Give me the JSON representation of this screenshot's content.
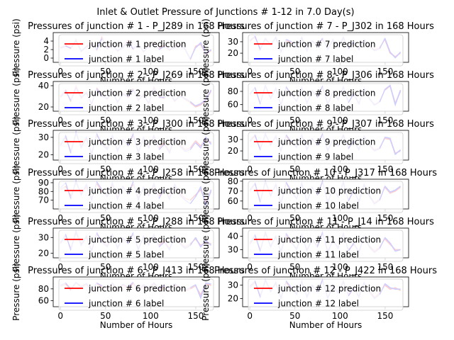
{
  "figure": {
    "suptitle": "Inlet & Outlet Pressure of Junctions # 1-12 in 7.0 Day(s)"
  },
  "colors": {
    "prediction": "#ff0000",
    "label": "#0000ff",
    "prediction_faint": "#ffb0b0",
    "label_faint": "#b0b0ff"
  },
  "chart_data": [
    {
      "type": "line",
      "title": "Pressures of junction # 1 - P_J289 in 168 Hours",
      "xlabel": "Number of Hours",
      "ylabel": "Pressure (psi)",
      "xlim": [
        -8,
        176
      ],
      "ylim": [
        -1,
        6
      ],
      "yticks": [
        0,
        2,
        4
      ],
      "xticks": [
        0,
        50,
        100,
        150
      ],
      "legend": "top-center",
      "series": [
        {
          "name": "junction # 1 prediction",
          "values": [
            2.5,
            3.0,
            2.2,
            4.4,
            1.5,
            2.8,
            3.6,
            1.8,
            5.0,
            2.4,
            3.2,
            1.6,
            2.6,
            4.2,
            2.0,
            3.4,
            1.4,
            2.8,
            3.8,
            2.2,
            3.0,
            1.8,
            2.6,
            3.4,
            2.0,
            -0.4,
            2.8,
            3.2,
            0.9,
            1.8
          ]
        },
        {
          "name": "junction # 1 label",
          "values": [
            2.3,
            2.8,
            2.4,
            4.0,
            1.7,
            2.6,
            3.2,
            2.0,
            4.6,
            2.2,
            3.0,
            1.8,
            2.4,
            3.8,
            2.2,
            3.2,
            1.6,
            2.6,
            3.4,
            2.0,
            2.8,
            2.0,
            2.4,
            3.0,
            2.2,
            -0.2,
            2.4,
            3.6,
            1.0,
            2.0
          ]
        }
      ]
    },
    {
      "type": "line",
      "title": "Pressures of junction # 2 - P_J269 in 168 Hours",
      "xlabel": "Number of Hours",
      "ylabel": "Pressure (psi)",
      "xlim": [
        -8,
        176
      ],
      "ylim": [
        16,
        44
      ],
      "yticks": [
        20,
        40
      ],
      "xticks": [
        0,
        50,
        100,
        150
      ],
      "legend": "top-center",
      "series": [
        {
          "name": "junction # 2 prediction",
          "values": [
            30,
            36,
            25,
            40,
            28,
            34,
            22,
            38,
            31,
            27,
            35,
            24,
            33,
            29,
            37,
            26,
            32,
            23,
            39,
            30,
            28,
            34,
            25,
            31,
            27,
            24,
            20,
            22,
            26,
            35
          ]
        },
        {
          "name": "junction # 2 label",
          "values": [
            29,
            35,
            26,
            38,
            29,
            33,
            23,
            37,
            30,
            28,
            34,
            25,
            32,
            30,
            36,
            27,
            31,
            24,
            37,
            29,
            29,
            33,
            26,
            30,
            28,
            25,
            21,
            23,
            27,
            36
          ]
        }
      ]
    },
    {
      "type": "line",
      "title": "Pressures of junction # 3 - P_J300 in 168 Hours",
      "xlabel": "Number of Hours",
      "ylabel": "Pressure (psi)",
      "xlim": [
        -8,
        176
      ],
      "ylim": [
        17,
        34
      ],
      "yticks": [
        20,
        30
      ],
      "xticks": [
        0,
        50,
        100,
        150
      ],
      "legend": "top-center",
      "series": [
        {
          "name": "junction # 3 prediction",
          "values": [
            26,
            30,
            22,
            32,
            25,
            29,
            21,
            31,
            27,
            24,
            30,
            23,
            28,
            26,
            31,
            22,
            29,
            25,
            30,
            24,
            27,
            22,
            29,
            26,
            23,
            24,
            28,
            25,
            29,
            27
          ]
        },
        {
          "name": "junction # 3 label",
          "values": [
            25,
            31,
            21,
            33,
            24,
            30,
            20,
            32,
            26,
            23,
            31,
            22,
            29,
            25,
            32,
            21,
            30,
            24,
            31,
            23,
            26,
            21,
            30,
            25,
            22,
            23,
            27,
            24,
            30,
            26
          ]
        }
      ]
    },
    {
      "type": "line",
      "title": "Pressures of junction # 4 - P_J258 in 168 Hours",
      "xlabel": "Number of Hours",
      "ylabel": "Pressure (psi)",
      "xlim": [
        -8,
        176
      ],
      "ylim": [
        60,
        94
      ],
      "yticks": [
        70,
        80,
        90
      ],
      "xticks": [
        0,
        50,
        100,
        150
      ],
      "legend": "top-center",
      "series": [
        {
          "name": "junction # 4 prediction",
          "values": [
            82,
            86,
            75,
            90,
            78,
            85,
            72,
            89,
            80,
            76,
            87,
            74,
            84,
            79,
            88,
            73,
            83,
            77,
            86,
            75,
            81,
            74,
            85,
            78,
            72,
            70,
            76,
            82,
            68,
            80
          ]
        },
        {
          "name": "junction # 4 label",
          "values": [
            84,
            90,
            72,
            92,
            76,
            88,
            70,
            91,
            82,
            74,
            90,
            71,
            86,
            77,
            91,
            70,
            85,
            75,
            89,
            72,
            83,
            71,
            88,
            76,
            70,
            66,
            74,
            85,
            64,
            82
          ]
        }
      ]
    },
    {
      "type": "line",
      "title": "Pressures of junction # 5 - P_J288 in 168 Hours",
      "xlabel": "Number of Hours",
      "ylabel": "Pressure (psi)",
      "xlim": [
        -8,
        176
      ],
      "ylim": [
        17,
        36
      ],
      "yticks": [
        20,
        30
      ],
      "xticks": [
        0,
        50,
        100,
        150
      ],
      "legend": "top-center",
      "series": [
        {
          "name": "junction # 5 prediction",
          "values": [
            27,
            31,
            23,
            33,
            26,
            30,
            22,
            32,
            28,
            25,
            31,
            24,
            29,
            27,
            32,
            23,
            30,
            26,
            31,
            25,
            28,
            23,
            30,
            27,
            24,
            26,
            29,
            25,
            27,
            26
          ]
        },
        {
          "name": "junction # 5 label",
          "values": [
            26,
            32,
            22,
            34,
            25,
            31,
            21,
            33,
            27,
            24,
            32,
            23,
            30,
            26,
            33,
            22,
            31,
            25,
            32,
            24,
            27,
            22,
            31,
            26,
            23,
            25,
            30,
            24,
            28,
            25
          ]
        }
      ]
    },
    {
      "type": "line",
      "title": "Pressures of junction # 6 - P_J413 in 168 Hours",
      "xlabel": "Number of Hours",
      "ylabel": "Pressure (psi)",
      "xlim": [
        -8,
        176
      ],
      "ylim": [
        50,
        100
      ],
      "yticks": [
        60,
        80
      ],
      "xticks": [
        0,
        50,
        100,
        150
      ],
      "legend": "top-center",
      "series": [
        {
          "name": "junction # 6 prediction",
          "values": [
            84,
            88,
            78,
            90,
            82,
            87,
            76,
            89,
            83,
            79,
            88,
            77,
            86,
            81,
            89,
            76,
            85,
            80,
            88,
            78,
            84,
            77,
            87,
            81,
            76,
            80,
            85,
            70,
            88,
            86
          ]
        },
        {
          "name": "junction # 6 label",
          "values": [
            86,
            90,
            80,
            91,
            84,
            89,
            78,
            90,
            85,
            81,
            90,
            79,
            88,
            83,
            91,
            78,
            87,
            82,
            90,
            80,
            86,
            79,
            89,
            83,
            78,
            82,
            87,
            65,
            90,
            88
          ]
        }
      ]
    },
    {
      "type": "line",
      "title": "Pressures of junction # 7 - P_J302 in 168 Hours",
      "xlabel": "Number of Hours",
      "ylabel": "Pressure (psi)",
      "xlim": [
        -8,
        176
      ],
      "ylim": [
        12,
        38
      ],
      "yticks": [
        20,
        30
      ],
      "xticks": [
        0,
        50,
        100,
        150
      ],
      "legend": "top-center",
      "series": [
        {
          "name": "junction # 7 prediction",
          "values": [
            30,
            34,
            24,
            32,
            28,
            33,
            22,
            31,
            29,
            26,
            33,
            23,
            30,
            27,
            32,
            24,
            31,
            26,
            33,
            25,
            29,
            24,
            31,
            27,
            23,
            25,
            32,
            20,
            17,
            20
          ]
        },
        {
          "name": "junction # 7 label",
          "values": [
            31,
            35,
            23,
            33,
            27,
            34,
            21,
            32,
            30,
            25,
            34,
            22,
            31,
            26,
            33,
            23,
            32,
            25,
            34,
            24,
            30,
            23,
            32,
            26,
            22,
            24,
            33,
            21,
            16,
            21
          ]
        }
      ]
    },
    {
      "type": "line",
      "title": "Pressures of junction # 8 - P_J306 in 168 Hours",
      "xlabel": "Number of Hours",
      "ylabel": "Pressure (psi)",
      "xlim": [
        -8,
        176
      ],
      "ylim": [
        50,
        95
      ],
      "yticks": [
        60,
        80
      ],
      "xticks": [
        0,
        50,
        100,
        150
      ],
      "legend": "top-center",
      "series": [
        {
          "name": "junction # 8 prediction",
          "values": [
            75,
            85,
            62,
            88,
            70,
            84,
            60,
            86,
            74,
            66,
            85,
            63,
            80,
            72,
            87,
            61,
            79,
            68,
            86,
            64,
            76,
            62,
            84,
            70,
            60,
            65,
            82,
            88,
            62,
            80
          ]
        },
        {
          "name": "junction # 8 label",
          "values": [
            76,
            86,
            61,
            89,
            69,
            85,
            59,
            87,
            75,
            65,
            86,
            62,
            81,
            71,
            88,
            60,
            80,
            67,
            87,
            63,
            77,
            61,
            85,
            69,
            59,
            64,
            83,
            89,
            60,
            82
          ]
        }
      ]
    },
    {
      "type": "line",
      "title": "Pressures of junction # 9 - P_J307 in 168 Hours",
      "xlabel": "Number of Hours",
      "ylabel": "Pressure (psi)",
      "xlim": [
        -8,
        176
      ],
      "ylim": [
        12,
        38
      ],
      "yticks": [
        20,
        30
      ],
      "xticks": [
        0,
        50,
        100,
        150
      ],
      "legend": "top-center",
      "series": [
        {
          "name": "junction # 9 prediction",
          "values": [
            28,
            33,
            22,
            34,
            26,
            32,
            21,
            33,
            27,
            24,
            33,
            22,
            30,
            26,
            34,
            21,
            29,
            25,
            33,
            23,
            28,
            22,
            32,
            26,
            21,
            23,
            31,
            30,
            18,
            20
          ]
        },
        {
          "name": "junction # 9 label",
          "values": [
            29,
            34,
            21,
            35,
            25,
            33,
            20,
            34,
            28,
            23,
            34,
            21,
            31,
            25,
            35,
            20,
            30,
            24,
            34,
            22,
            29,
            21,
            33,
            25,
            20,
            22,
            32,
            31,
            17,
            21
          ]
        }
      ]
    },
    {
      "type": "line",
      "title": "Pressures of junction # 10 - P_J317 in 168 Hours",
      "xlabel": "Number of Hours",
      "ylabel": "Pressure (psi)",
      "xlim": [
        -8,
        176
      ],
      "ylim": [
        52,
        82
      ],
      "yticks": [
        60,
        70,
        80
      ],
      "xticks": [
        0,
        50,
        100,
        150
      ],
      "legend": "top-center",
      "series": [
        {
          "name": "junction # 10 prediction",
          "values": [
            70,
            77,
            60,
            79,
            66,
            76,
            58,
            78,
            69,
            63,
            77,
            60,
            73,
            67,
            79,
            59,
            72,
            65,
            78,
            61,
            70,
            60,
            76,
            66,
            58,
            62,
            74,
            68,
            70,
            74
          ]
        },
        {
          "name": "junction # 10 label",
          "values": [
            71,
            78,
            59,
            80,
            65,
            77,
            57,
            79,
            70,
            62,
            78,
            59,
            74,
            66,
            80,
            58,
            73,
            64,
            79,
            60,
            71,
            59,
            77,
            65,
            57,
            61,
            75,
            69,
            71,
            75
          ]
        }
      ]
    },
    {
      "type": "line",
      "title": "Pressures of junction # 11 - P_J14 in 168 Hours",
      "xlabel": "Number of Hours",
      "ylabel": "Pressure (psi)",
      "xlim": [
        -8,
        176
      ],
      "ylim": [
        24,
        46
      ],
      "yticks": [
        30,
        40
      ],
      "xticks": [
        0,
        50,
        100,
        150
      ],
      "legend": "top-center",
      "series": [
        {
          "name": "junction # 11 prediction",
          "values": [
            34,
            40,
            30,
            42,
            33,
            39,
            29,
            41,
            35,
            31,
            40,
            30,
            37,
            33,
            42,
            29,
            36,
            32,
            41,
            30,
            34,
            29,
            39,
            33,
            29,
            32,
            38,
            34,
            30,
            30
          ]
        },
        {
          "name": "junction # 11 label",
          "values": [
            35,
            41,
            29,
            43,
            32,
            40,
            28,
            42,
            36,
            30,
            41,
            29,
            38,
            32,
            43,
            28,
            37,
            31,
            42,
            29,
            35,
            28,
            40,
            32,
            28,
            31,
            39,
            35,
            29,
            30
          ]
        }
      ]
    },
    {
      "type": "line",
      "title": "Pressures of junction # 12 - P_J422 in 168 Hours",
      "xlabel": "Number of Hours",
      "ylabel": "Pressure (psi)",
      "xlim": [
        -8,
        176
      ],
      "ylim": [
        14,
        36
      ],
      "yticks": [
        20,
        30
      ],
      "xticks": [
        0,
        50,
        100,
        150
      ],
      "legend": "top-center",
      "series": [
        {
          "name": "junction # 12 prediction",
          "values": [
            28,
            32,
            22,
            33,
            26,
            31,
            21,
            32,
            27,
            24,
            32,
            22,
            29,
            26,
            33,
            21,
            28,
            25,
            32,
            23,
            27,
            22,
            31,
            26,
            21,
            24,
            30,
            27,
            28,
            26
          ]
        },
        {
          "name": "junction # 12 label",
          "values": [
            29,
            33,
            21,
            34,
            25,
            32,
            20,
            33,
            28,
            23,
            33,
            21,
            30,
            25,
            34,
            20,
            29,
            24,
            33,
            22,
            28,
            21,
            32,
            25,
            20,
            23,
            31,
            28,
            27,
            27
          ]
        }
      ]
    }
  ]
}
